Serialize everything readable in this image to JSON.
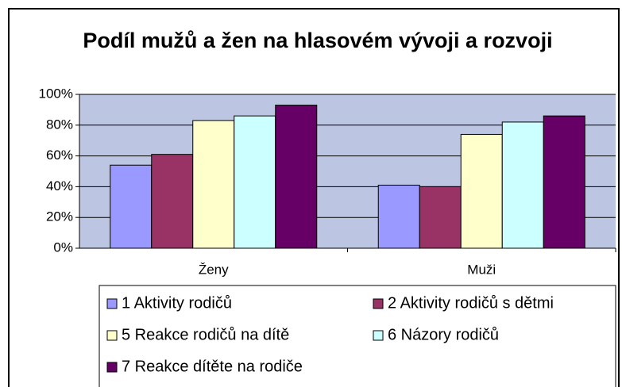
{
  "chart_data": {
    "type": "bar",
    "title": "Podíl mužů a žen na hlasovém vývoji a rozvoji",
    "categories": [
      "Ženy",
      "Muži"
    ],
    "series": [
      {
        "name": "1 Aktivity rodičů",
        "color": "#9999ff",
        "values": [
          54,
          41
        ]
      },
      {
        "name": "2 Aktivity rodičů s dětmi",
        "color": "#993366",
        "values": [
          61,
          40
        ]
      },
      {
        "name": "5 Reakce rodičů na dítě",
        "color": "#ffffcc",
        "values": [
          83,
          74
        ]
      },
      {
        "name": "6 Názory rodičů",
        "color": "#ccffff",
        "values": [
          86,
          82
        ]
      },
      {
        "name": "7 Reakce dítěte na rodiče",
        "color": "#660066",
        "values": [
          93,
          86
        ]
      }
    ],
    "ylim": [
      0,
      100
    ],
    "yticks": [
      {
        "value": 0,
        "label": "0%"
      },
      {
        "value": 20,
        "label": "20%"
      },
      {
        "value": 40,
        "label": "40%"
      },
      {
        "value": 60,
        "label": "60%"
      },
      {
        "value": 80,
        "label": "80%"
      },
      {
        "value": 100,
        "label": "100%"
      }
    ],
    "grid": true
  }
}
